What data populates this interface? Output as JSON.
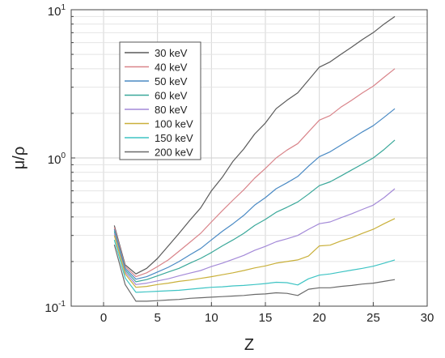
{
  "chart_data": {
    "type": "line",
    "xlabel": "Z",
    "ylabel": "μ/ρ",
    "xlim": [
      -3,
      30
    ],
    "ylim": [
      0.1,
      10
    ],
    "yscale": "log",
    "grid": true,
    "legend_position": "top-left",
    "x_ticks": [
      "0",
      "5",
      "10",
      "15",
      "20",
      "25",
      "30"
    ],
    "y_ticks": [
      {
        "base": "10",
        "exp": "-1"
      },
      {
        "base": "10",
        "exp": "0"
      },
      {
        "base": "10",
        "exp": "1"
      }
    ],
    "x": [
      1,
      2,
      3,
      4,
      5,
      6,
      7,
      8,
      9,
      10,
      11,
      12,
      13,
      14,
      15,
      16,
      17,
      18,
      19,
      20,
      21,
      22,
      23,
      24,
      25,
      26,
      27
    ],
    "series": [
      {
        "name": "30 keV",
        "color": "#5a5a5a",
        "values": [
          0.35,
          0.19,
          0.165,
          0.18,
          0.21,
          0.255,
          0.31,
          0.38,
          0.46,
          0.6,
          0.74,
          0.95,
          1.15,
          1.45,
          1.72,
          2.15,
          2.45,
          2.75,
          3.35,
          4.1,
          4.45,
          5.0,
          5.6,
          6.3,
          7.0,
          8.0,
          9.0
        ]
      },
      {
        "name": "40 keV",
        "color": "#d9848a",
        "values": [
          0.34,
          0.185,
          0.158,
          0.168,
          0.185,
          0.205,
          0.235,
          0.27,
          0.31,
          0.37,
          0.44,
          0.52,
          0.61,
          0.73,
          0.85,
          1.0,
          1.13,
          1.25,
          1.5,
          1.8,
          1.93,
          2.2,
          2.45,
          2.75,
          3.05,
          3.5,
          4.0
        ]
      },
      {
        "name": "50 keV",
        "color": "#4a8ac4",
        "values": [
          0.33,
          0.18,
          0.152,
          0.158,
          0.17,
          0.183,
          0.2,
          0.222,
          0.245,
          0.28,
          0.32,
          0.36,
          0.41,
          0.48,
          0.54,
          0.62,
          0.68,
          0.75,
          0.88,
          1.02,
          1.1,
          1.22,
          1.35,
          1.5,
          1.65,
          1.88,
          2.15
        ]
      },
      {
        "name": "60 keV",
        "color": "#3aa89a",
        "values": [
          0.32,
          0.175,
          0.146,
          0.151,
          0.16,
          0.17,
          0.18,
          0.195,
          0.21,
          0.23,
          0.255,
          0.28,
          0.31,
          0.35,
          0.385,
          0.43,
          0.465,
          0.505,
          0.57,
          0.65,
          0.69,
          0.755,
          0.83,
          0.91,
          1.0,
          1.14,
          1.32
        ]
      },
      {
        "name": "80 keV",
        "color": "#a48ad8",
        "values": [
          0.31,
          0.17,
          0.14,
          0.143,
          0.148,
          0.153,
          0.16,
          0.167,
          0.174,
          0.185,
          0.195,
          0.207,
          0.22,
          0.238,
          0.253,
          0.272,
          0.285,
          0.3,
          0.33,
          0.36,
          0.37,
          0.395,
          0.42,
          0.45,
          0.48,
          0.54,
          0.62
        ]
      },
      {
        "name": "100 keV",
        "color": "#c9b03a",
        "values": [
          0.3,
          0.165,
          0.134,
          0.136,
          0.14,
          0.143,
          0.147,
          0.15,
          0.154,
          0.158,
          0.163,
          0.168,
          0.174,
          0.181,
          0.187,
          0.195,
          0.2,
          0.205,
          0.218,
          0.255,
          0.258,
          0.275,
          0.29,
          0.31,
          0.33,
          0.36,
          0.39
        ]
      },
      {
        "name": "150 keV",
        "color": "#3ec4c4",
        "values": [
          0.28,
          0.155,
          0.124,
          0.125,
          0.126,
          0.127,
          0.128,
          0.13,
          0.132,
          0.134,
          0.135,
          0.137,
          0.138,
          0.14,
          0.142,
          0.145,
          0.144,
          0.139,
          0.153,
          0.162,
          0.165,
          0.17,
          0.175,
          0.18,
          0.186,
          0.195,
          0.205
        ]
      },
      {
        "name": "200 keV",
        "color": "#6a6a6a",
        "values": [
          0.26,
          0.14,
          0.108,
          0.108,
          0.109,
          0.11,
          0.111,
          0.113,
          0.114,
          0.115,
          0.116,
          0.117,
          0.118,
          0.12,
          0.121,
          0.123,
          0.122,
          0.118,
          0.13,
          0.133,
          0.133,
          0.136,
          0.138,
          0.141,
          0.143,
          0.147,
          0.151
        ]
      }
    ]
  }
}
